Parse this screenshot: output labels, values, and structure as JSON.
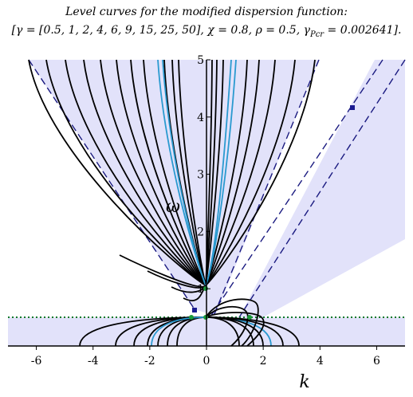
{
  "chart_data": {
    "type": "contour",
    "title": "Level curves for the modified dispersion function:",
    "subtitle_parts": [
      "[γ = [0.5, 1, 2, 4, 6, 9, 15, 25, 50], χ = 0.8, ρ = 0.5, γ",
      "Pcr",
      " = 0.002641]."
    ],
    "x_label": "k",
    "y_label": "ω",
    "xlim": [
      -7,
      7
    ],
    "ylim": [
      0,
      5
    ],
    "xticks": [
      -6,
      -4,
      -2,
      0,
      2,
      4,
      6
    ],
    "yticks": [
      1,
      2,
      3,
      4,
      5
    ]
  }
}
